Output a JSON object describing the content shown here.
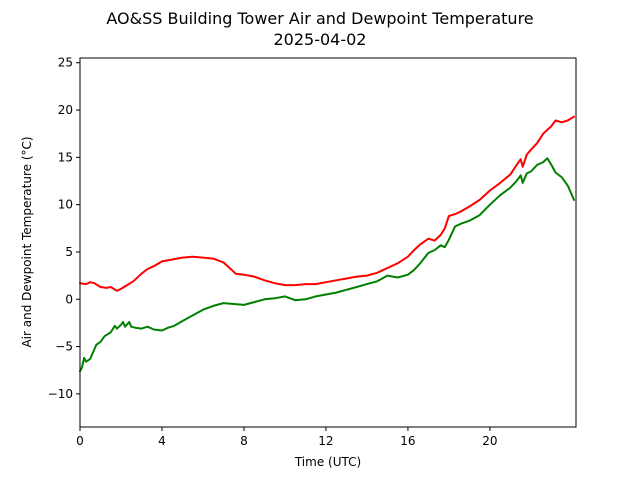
{
  "chart_data": {
    "type": "line",
    "title": "AO&SS Building Tower Air and Dewpoint Temperature",
    "subtitle": "2025-04-02",
    "xlabel": "Time (UTC)",
    "ylabel": "Air and Dewpoint Temperature (°C)",
    "xlim": [
      0,
      24.2
    ],
    "ylim": [
      -13.5,
      25.5
    ],
    "x_ticks": [
      0,
      4,
      8,
      12,
      16,
      20
    ],
    "y_ticks": [
      -10,
      -5,
      0,
      5,
      10,
      15,
      20,
      25
    ],
    "grid": false,
    "series": [
      {
        "color": "#ff0000",
        "x": [
          0,
          0.3,
          0.5,
          0.7,
          1.0,
          1.3,
          1.5,
          1.8,
          2.0,
          2.3,
          2.6,
          3.0,
          3.3,
          3.6,
          4.0,
          4.5,
          5.0,
          5.5,
          6.0,
          6.5,
          7.0,
          7.3,
          7.6,
          8.0,
          8.5,
          9.0,
          9.5,
          10.0,
          10.5,
          11.0,
          11.5,
          12.0,
          12.5,
          13.0,
          13.5,
          14.0,
          14.5,
          15.0,
          15.5,
          16.0,
          16.3,
          16.6,
          17.0,
          17.3,
          17.6,
          17.8,
          18.0,
          18.3,
          18.6,
          19.0,
          19.5,
          20.0,
          20.5,
          21.0,
          21.3,
          21.5,
          21.6,
          21.8,
          22.0,
          22.3,
          22.6,
          22.8,
          23.0,
          23.2,
          23.5,
          23.8,
          24.1
        ],
        "values": [
          1.7,
          1.6,
          1.8,
          1.7,
          1.3,
          1.2,
          1.3,
          0.9,
          1.1,
          1.5,
          1.9,
          2.7,
          3.2,
          3.5,
          4.0,
          4.2,
          4.4,
          4.5,
          4.4,
          4.3,
          3.9,
          3.3,
          2.7,
          2.6,
          2.4,
          2.0,
          1.7,
          1.5,
          1.5,
          1.6,
          1.6,
          1.8,
          2.0,
          2.2,
          2.4,
          2.5,
          2.8,
          3.3,
          3.8,
          4.5,
          5.2,
          5.8,
          6.4,
          6.2,
          6.8,
          7.5,
          8.8,
          9.0,
          9.3,
          9.8,
          10.5,
          11.5,
          12.3,
          13.2,
          14.2,
          14.8,
          14.0,
          15.3,
          15.8,
          16.5,
          17.5,
          17.9,
          18.3,
          18.9,
          18.7,
          18.9,
          19.3
        ]
      },
      {
        "color": "#008000",
        "x": [
          0,
          0.1,
          0.2,
          0.3,
          0.5,
          0.7,
          0.8,
          1.0,
          1.2,
          1.5,
          1.7,
          1.8,
          2.0,
          2.1,
          2.2,
          2.4,
          2.5,
          2.7,
          3.0,
          3.3,
          3.6,
          4.0,
          4.3,
          4.6,
          5.0,
          5.5,
          6.0,
          6.5,
          7.0,
          7.5,
          8.0,
          8.5,
          9.0,
          9.5,
          10.0,
          10.5,
          11.0,
          11.5,
          12.0,
          12.5,
          13.0,
          13.5,
          14.0,
          14.5,
          15.0,
          15.5,
          16.0,
          16.3,
          16.6,
          17.0,
          17.3,
          17.6,
          17.8,
          18.0,
          18.3,
          18.6,
          19.0,
          19.5,
          20.0,
          20.5,
          21.0,
          21.3,
          21.5,
          21.6,
          21.8,
          22.0,
          22.3,
          22.6,
          22.8,
          23.0,
          23.2,
          23.5,
          23.8,
          24.1
        ],
        "values": [
          -7.6,
          -7.2,
          -6.2,
          -6.6,
          -6.3,
          -5.3,
          -4.8,
          -4.5,
          -3.9,
          -3.5,
          -2.8,
          -3.1,
          -2.7,
          -2.4,
          -2.9,
          -2.4,
          -2.9,
          -3.0,
          -3.1,
          -2.9,
          -3.2,
          -3.3,
          -3.0,
          -2.8,
          -2.3,
          -1.7,
          -1.1,
          -0.7,
          -0.4,
          -0.5,
          -0.6,
          -0.3,
          0.0,
          0.1,
          0.3,
          -0.1,
          0.0,
          0.3,
          0.5,
          0.7,
          1.0,
          1.3,
          1.6,
          1.9,
          2.5,
          2.3,
          2.6,
          3.1,
          3.8,
          4.9,
          5.2,
          5.7,
          5.5,
          6.3,
          7.7,
          8.0,
          8.3,
          8.9,
          10.0,
          11.0,
          11.8,
          12.5,
          13.1,
          12.3,
          13.3,
          13.5,
          14.2,
          14.5,
          14.9,
          14.2,
          13.4,
          12.9,
          12.0,
          10.5
        ]
      }
    ]
  }
}
